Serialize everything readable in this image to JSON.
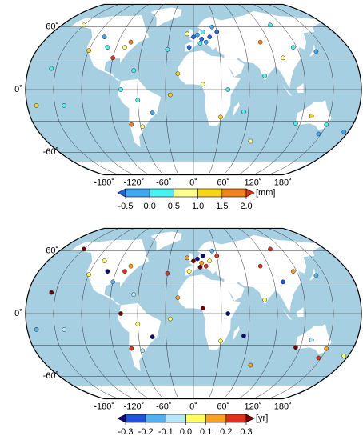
{
  "maps": [
    {
      "lat_labels": [
        {
          "value": 60,
          "label": "60˚"
        },
        {
          "value": 0,
          "label": "0˚"
        },
        {
          "value": -60,
          "label": "-60˚"
        }
      ],
      "lon_labels": [
        {
          "value": -180,
          "label": "-180˚"
        },
        {
          "value": -120,
          "label": "-120˚"
        },
        {
          "value": -60,
          "label": "-60˚"
        },
        {
          "value": 0,
          "label": "0˚"
        },
        {
          "value": 60,
          "label": "60˚"
        },
        {
          "value": 120,
          "label": "120˚"
        },
        {
          "value": 180,
          "label": "180˚"
        }
      ],
      "colorbar": {
        "ticks": [
          -0.5,
          {
            "value": 0,
            "label": "0.0"
          },
          0.5,
          {
            "value": 1,
            "label": "1.0"
          },
          1.5,
          {
            "value": 2,
            "label": "2.0"
          }
        ],
        "colors": [
          "#1e64e6",
          "#3ca8f5",
          "#4cf0f0",
          "#ffff8c",
          "#f8d21e",
          "#f08020",
          "#e0301a"
        ],
        "unit": "[mm]"
      },
      "stations": {
        "lon": [
          0,
          5,
          10,
          15,
          20,
          25,
          8,
          -5,
          12,
          30,
          -8,
          -120,
          -100,
          -80,
          -75,
          -90,
          -110,
          -150,
          -65,
          -60,
          -45,
          -70,
          -58,
          -78,
          30,
          37,
          -17,
          10,
          80,
          100,
          116,
          140,
          77,
          105,
          150,
          130,
          115,
          175,
          147,
          -155,
          -140,
          55,
          -25,
          70,
          -170,
          -30
        ],
        "lat": [
          50,
          52,
          48,
          45,
          50,
          60,
          44,
          40,
          55,
          55,
          53,
          37,
          40,
          40,
          45,
          30,
          50,
          62,
          18,
          -10,
          -22,
          -33,
          -35,
          0,
          -26,
          0,
          15,
          5,
          45,
          30,
          40,
          36,
          13,
          62,
          -33,
          -25,
          -32,
          -40,
          -42,
          20,
          -15,
          -21,
          -5,
          -49,
          -15,
          38
        ],
        "values": [
          -0.7,
          -0.3,
          -0.6,
          -0.2,
          -0.8,
          -0.4,
          0.2,
          -0.6,
          0.3,
          -0.7,
          0.8,
          1.2,
          0.3,
          0.7,
          1.6,
          2.2,
          -0.2,
          0.8,
          0.3,
          0.2,
          -0.2,
          1.7,
          0.6,
          0.2,
          1.1,
          0.4,
          1.2,
          0.7,
          1.8,
          0.6,
          0.3,
          -0.3,
          0.2,
          0.4,
          0.3,
          1.2,
          0.4,
          -0.2,
          -0.4,
          0.1,
          0.4,
          0.2,
          1.1,
          0.6,
          1.3,
          0.4
        ]
      }
    },
    {
      "lat_labels": [
        {
          "value": 60,
          "label": "60˚"
        },
        {
          "value": 0,
          "label": "0˚"
        },
        {
          "value": -60,
          "label": "-60˚"
        }
      ],
      "lon_labels": [
        {
          "value": -180,
          "label": "-180˚"
        },
        {
          "value": -120,
          "label": "-120˚"
        },
        {
          "value": -60,
          "label": "-60˚"
        },
        {
          "value": 0,
          "label": "0˚"
        },
        {
          "value": 60,
          "label": "60˚"
        },
        {
          "value": 120,
          "label": "120˚"
        },
        {
          "value": 180,
          "label": "180˚"
        }
      ],
      "colorbar": {
        "ticks": [
          -0.3,
          -0.2,
          -0.1,
          {
            "value": 0,
            "label": "0.0"
          },
          0.1,
          0.2,
          0.3
        ],
        "colors": [
          "#0a0a78",
          "#2050e0",
          "#50b0f0",
          "#b4e8f8",
          "#ffff5a",
          "#f8a020",
          "#e0301a",
          "#7a0000"
        ],
        "unit": "[yr]"
      },
      "stations": {
        "lon": [
          0,
          5,
          10,
          15,
          20,
          25,
          8,
          -5,
          12,
          30,
          -8,
          -120,
          -100,
          -80,
          -75,
          -90,
          -110,
          -150,
          -65,
          -60,
          -45,
          -70,
          -58,
          -78,
          30,
          37,
          -17,
          10,
          80,
          100,
          116,
          140,
          77,
          105,
          150,
          130,
          115,
          175,
          147,
          -155,
          -140,
          55,
          -25,
          70,
          -170,
          -30
        ],
        "lat": [
          50,
          52,
          48,
          45,
          50,
          60,
          44,
          40,
          55,
          55,
          53,
          37,
          40,
          40,
          45,
          30,
          50,
          62,
          18,
          -10,
          -22,
          -33,
          -35,
          0,
          -26,
          0,
          15,
          5,
          45,
          30,
          40,
          36,
          13,
          62,
          -33,
          -25,
          -32,
          -40,
          -42,
          20,
          -15,
          -21,
          -5,
          -49,
          -15,
          38
        ],
        "values": [
          0.35,
          -0.35,
          0.15,
          0.25,
          0.05,
          -0.15,
          0.35,
          0.05,
          -0.35,
          0.25,
          0.15,
          0.05,
          -0.35,
          0.25,
          0.15,
          -0.15,
          0.05,
          0.35,
          -0.05,
          0.05,
          -0.35,
          0.25,
          -0.05,
          0.35,
          0.05,
          -0.35,
          0.15,
          0.35,
          0.25,
          -0.25,
          0.15,
          -0.15,
          0.05,
          0.25,
          0.15,
          -0.05,
          0.35,
          0.05,
          0.25,
          0.35,
          -0.05,
          -0.35,
          0.05,
          0.15,
          -0.15,
          0.25
        ]
      }
    }
  ]
}
